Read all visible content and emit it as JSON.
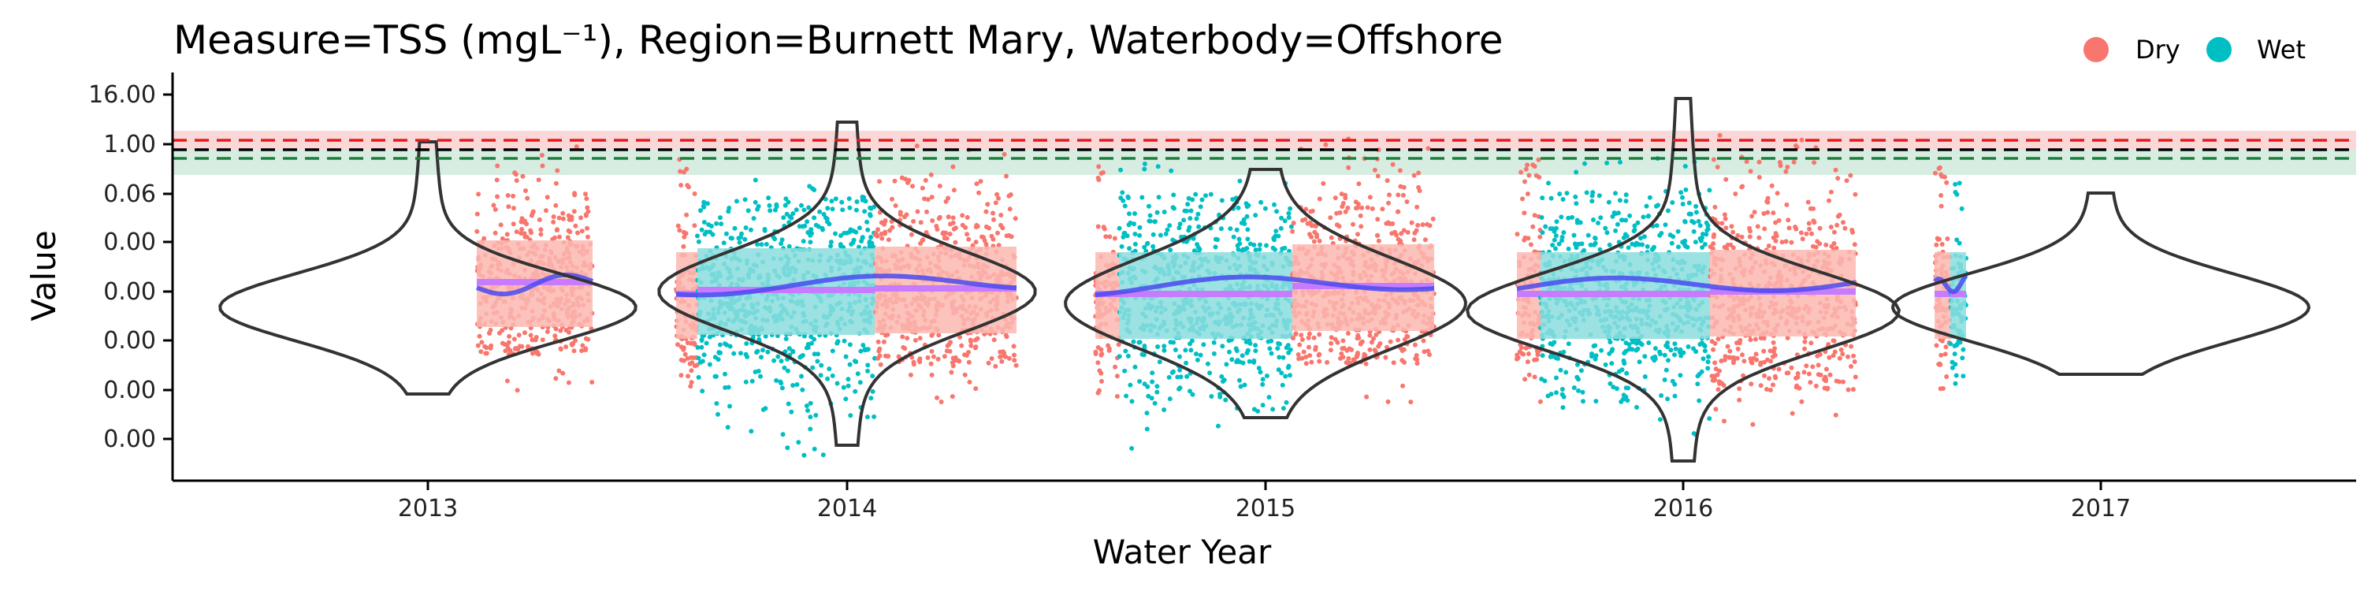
{
  "chart_data": {
    "type": "violin",
    "title": "Measure=TSS (mgL⁻¹), Region=Burnett Mary, Waterbody=Offshore",
    "xlabel": "Water Year",
    "ylabel": "Value",
    "x_ticks": [
      "2013",
      "2014",
      "2015",
      "2016",
      "2017"
    ],
    "y_ticks": [
      "16.00",
      "1.00",
      "0.06",
      "0.00",
      "0.00",
      "0.00",
      "0.00",
      "0.00"
    ],
    "legend": {
      "placement": "top-right",
      "entries": [
        {
          "label": "Dry",
          "color": "#F8766D"
        },
        {
          "label": "Wet",
          "color": "#00BFC4"
        }
      ]
    },
    "reference_lines": [
      {
        "level": 0.9,
        "color": "#E41A1C",
        "style": "dashed",
        "band_color": "#F8C8C8"
      },
      {
        "level": 0.55,
        "color": "#000000",
        "style": "dashed"
      },
      {
        "level": 0.45,
        "color": "#1B7F3B",
        "style": "dashed",
        "band_color": "#CDE8DA"
      }
    ],
    "grid": false,
    "colors": {
      "dry": "#F8766D",
      "wet": "#00BFC4",
      "dry_box": "#FCB8B2",
      "wet_box": "#8CDDDE",
      "median_line": "#C77CFF",
      "smoother": "#4A4AF0"
    }
  }
}
